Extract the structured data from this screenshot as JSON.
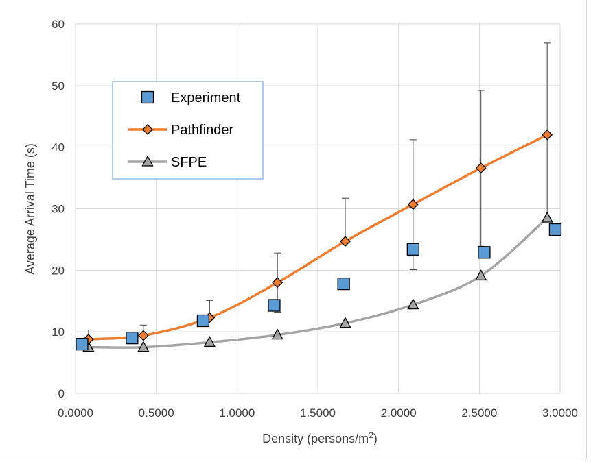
{
  "chart_data": {
    "type": "line",
    "xlabel": "Density (persons/m",
    "xlabel_sup": "2",
    "xlabel_tail": ")",
    "ylabel": "Average Arrival Time (s)",
    "xlim": [
      0,
      3
    ],
    "ylim": [
      0,
      60
    ],
    "x_ticks": [
      "0.0000",
      "0.5000",
      "1.0000",
      "1.5000",
      "2.0000",
      "2.5000",
      "3.0000"
    ],
    "y_ticks": [
      "0",
      "10",
      "20",
      "30",
      "40",
      "50",
      "60"
    ],
    "grid": true,
    "legend": "upper-left",
    "series": [
      {
        "name": "Experiment",
        "marker": "square",
        "line": false,
        "color": "#5b9bd5",
        "x": [
          0.04,
          0.35,
          0.79,
          1.23,
          1.66,
          2.09,
          2.53,
          2.97
        ],
        "y": [
          8.0,
          9.0,
          11.8,
          14.3,
          17.8,
          23.4,
          22.9,
          26.6
        ]
      },
      {
        "name": "Pathfinder",
        "marker": "diamond",
        "line": true,
        "color": "#ed7d31",
        "x": [
          0.08,
          0.42,
          0.83,
          1.25,
          1.67,
          2.09,
          2.51,
          2.92
        ],
        "y": [
          8.8,
          9.4,
          12.3,
          18.0,
          24.7,
          30.7,
          36.6,
          42.0
        ],
        "error_high": [
          10.3,
          11.1,
          15.1,
          22.8,
          31.7,
          41.2,
          49.2,
          56.9
        ],
        "error_low": [
          8.8,
          9.4,
          12.3,
          13.2,
          24.7,
          20.1,
          23.9,
          28.5
        ]
      },
      {
        "name": "SFPE",
        "marker": "triangle",
        "line": true,
        "color": "#a5a5a5",
        "x": [
          0.08,
          0.42,
          0.83,
          1.25,
          1.67,
          2.09,
          2.51,
          2.92
        ],
        "y": [
          7.5,
          7.5,
          8.3,
          9.5,
          11.4,
          14.4,
          19.1,
          28.5
        ]
      }
    ]
  }
}
